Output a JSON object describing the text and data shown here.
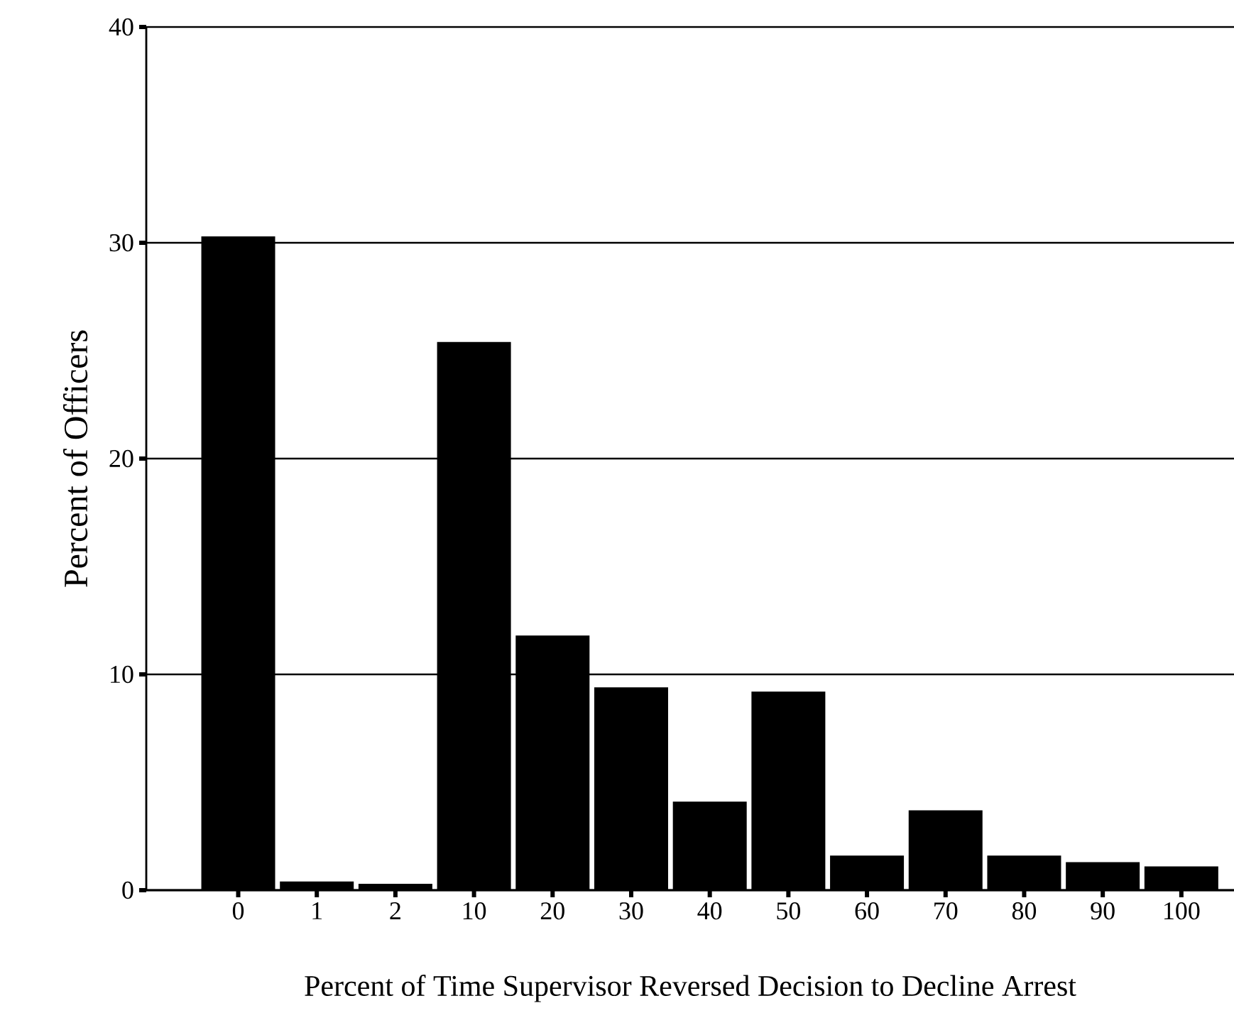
{
  "chart_data": {
    "type": "bar",
    "xlabel": "Percent of Time Supervisor Reversed Decision to Decline  Arrest",
    "ylabel": "Percent of Officers",
    "categories": [
      "0",
      "1",
      "2",
      "10",
      "20",
      "30",
      "40",
      "50",
      "60",
      "70",
      "80",
      "90",
      "100"
    ],
    "values": [
      30.3,
      0.4,
      0.3,
      25.4,
      11.8,
      9.4,
      4.1,
      9.2,
      1.6,
      3.7,
      1.6,
      1.3,
      1.1
    ],
    "color": "#000000",
    "ylim": [
      0,
      40
    ],
    "yticks": [
      0,
      10,
      20,
      30,
      40
    ],
    "grid": "y"
  }
}
